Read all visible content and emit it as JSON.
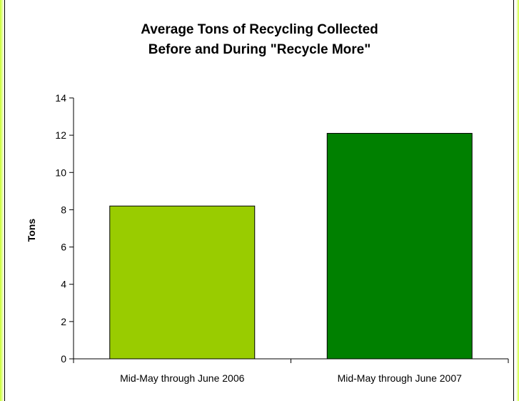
{
  "chart_data": {
    "type": "bar",
    "title_lines": [
      "Average Tons of Recycling Collected",
      "Before and During \"Recycle More\""
    ],
    "xlabel": "",
    "ylabel": "Tons",
    "categories": [
      "Mid-May through June 2006",
      "Mid-May through June 2007"
    ],
    "values": [
      8.2,
      12.1
    ],
    "bar_colors": [
      "#99cc00",
      "#008000"
    ],
    "ylim": [
      0,
      14
    ],
    "yticks": [
      0,
      2,
      4,
      6,
      8,
      10,
      12,
      14
    ],
    "grid": false,
    "legend": "none"
  }
}
